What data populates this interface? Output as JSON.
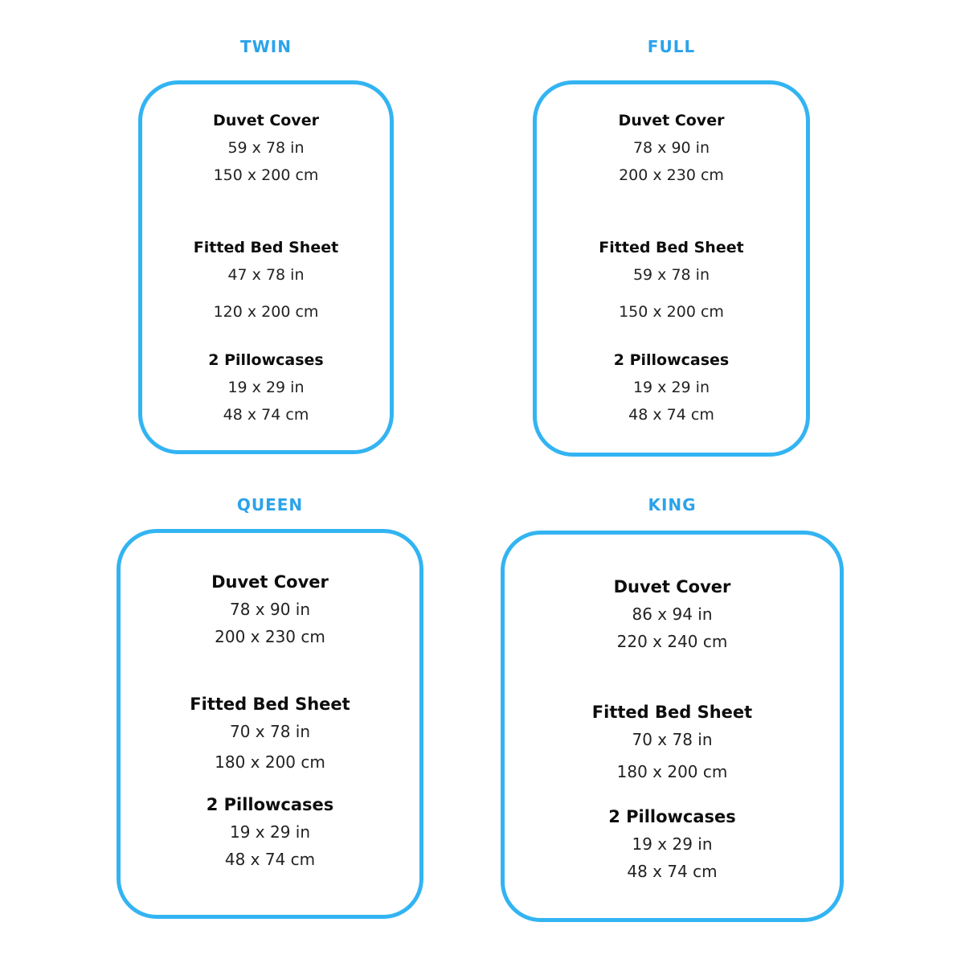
{
  "colors": {
    "accent_title_blue": "#2BA3EA",
    "border_blue": "#33B4F2",
    "heading_text": "#0d0d0d",
    "value_text": "#222222",
    "background": "#ffffff"
  },
  "panels": [
    {
      "id": "twin",
      "title": "TWIN",
      "items": [
        {
          "label": "Duvet Cover",
          "inches": "59 x 78 in",
          "cm": "150 x 200 cm"
        },
        {
          "label": "Fitted Bed Sheet",
          "inches": "47 x 78 in",
          "cm": "120 x 200 cm"
        },
        {
          "label": "2 Pillowcases",
          "inches": "19 x 29 in",
          "cm": "48 x 74 cm"
        }
      ]
    },
    {
      "id": "full",
      "title": "FULL",
      "items": [
        {
          "label": "Duvet Cover",
          "inches": "78 x 90 in",
          "cm": "200 x 230 cm"
        },
        {
          "label": "Fitted Bed Sheet",
          "inches": "59 x 78 in",
          "cm": "150 x 200 cm"
        },
        {
          "label": "2 Pillowcases",
          "inches": "19 x 29 in",
          "cm": "48 x 74 cm"
        }
      ]
    },
    {
      "id": "queen",
      "title": "QUEEN",
      "items": [
        {
          "label": "Duvet Cover",
          "inches": "78 x 90 in",
          "cm": "200 x 230 cm"
        },
        {
          "label": "Fitted Bed Sheet",
          "inches": "70 x 78 in",
          "cm": "180 x 200 cm"
        },
        {
          "label": "2 Pillowcases",
          "inches": "19 x 29 in",
          "cm": "48 x 74 cm"
        }
      ]
    },
    {
      "id": "king",
      "title": "KING",
      "items": [
        {
          "label": "Duvet Cover",
          "inches": "86 x 94 in",
          "cm": "220 x 240 cm"
        },
        {
          "label": "Fitted Bed Sheet",
          "inches": "70 x 78 in",
          "cm": "180 x 200 cm"
        },
        {
          "label": "2 Pillowcases",
          "inches": "19 x 29 in",
          "cm": "48 x 74 cm"
        }
      ]
    }
  ]
}
